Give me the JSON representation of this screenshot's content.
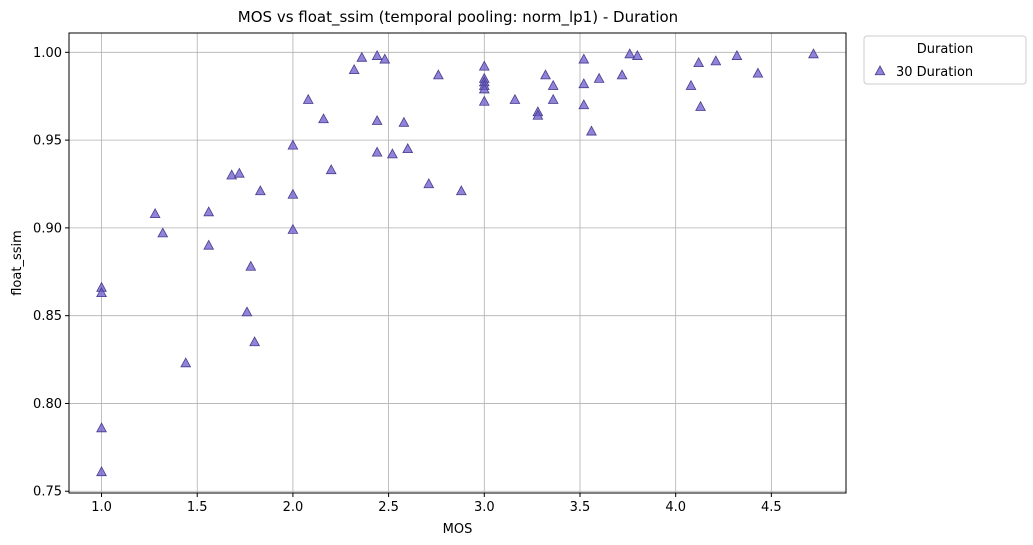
{
  "chart_data": {
    "type": "scatter",
    "title": "MOS vs float_ssim (temporal pooling: norm_lp1) - Duration",
    "xlabel": "MOS",
    "ylabel": "float_ssim",
    "xlim": [
      0.83,
      4.89
    ],
    "ylim": [
      0.749,
      1.011
    ],
    "xticks": [
      "1.0",
      "1.5",
      "2.0",
      "2.5",
      "3.0",
      "3.5",
      "4.0",
      "4.5"
    ],
    "yticks": [
      "0.75",
      "0.80",
      "0.85",
      "0.90",
      "0.95",
      "1.00"
    ],
    "grid": true,
    "legend": {
      "title": "Duration",
      "placement": "outside-top-right"
    },
    "series": [
      {
        "name": "30 Duration",
        "marker": "triangle",
        "color": "#6a5acd",
        "edge_color": "#483d8b",
        "points": [
          [
            1.0,
            0.866
          ],
          [
            1.0,
            0.863
          ],
          [
            1.0,
            0.786
          ],
          [
            1.0,
            0.761
          ],
          [
            1.28,
            0.908
          ],
          [
            1.32,
            0.897
          ],
          [
            1.44,
            0.823
          ],
          [
            1.56,
            0.909
          ],
          [
            1.56,
            0.89
          ],
          [
            1.68,
            0.93
          ],
          [
            1.72,
            0.931
          ],
          [
            1.76,
            0.852
          ],
          [
            1.78,
            0.878
          ],
          [
            1.8,
            0.835
          ],
          [
            1.83,
            0.921
          ],
          [
            2.0,
            0.947
          ],
          [
            2.0,
            0.919
          ],
          [
            2.0,
            0.899
          ],
          [
            2.08,
            0.973
          ],
          [
            2.16,
            0.962
          ],
          [
            2.2,
            0.933
          ],
          [
            2.32,
            0.99
          ],
          [
            2.36,
            0.997
          ],
          [
            2.44,
            0.998
          ],
          [
            2.44,
            0.961
          ],
          [
            2.44,
            0.943
          ],
          [
            2.48,
            0.996
          ],
          [
            2.52,
            0.942
          ],
          [
            2.58,
            0.96
          ],
          [
            2.6,
            0.945
          ],
          [
            2.71,
            0.925
          ],
          [
            2.76,
            0.987
          ],
          [
            2.88,
            0.921
          ],
          [
            3.0,
            0.992
          ],
          [
            3.0,
            0.985
          ],
          [
            3.0,
            0.983
          ],
          [
            3.0,
            0.981
          ],
          [
            3.0,
            0.979
          ],
          [
            3.0,
            0.972
          ],
          [
            3.16,
            0.973
          ],
          [
            3.28,
            0.966
          ],
          [
            3.28,
            0.964
          ],
          [
            3.32,
            0.987
          ],
          [
            3.36,
            0.981
          ],
          [
            3.36,
            0.973
          ],
          [
            3.52,
            0.996
          ],
          [
            3.52,
            0.982
          ],
          [
            3.52,
            0.97
          ],
          [
            3.56,
            0.955
          ],
          [
            3.6,
            0.985
          ],
          [
            3.72,
            0.987
          ],
          [
            3.76,
            0.999
          ],
          [
            3.8,
            0.998
          ],
          [
            4.08,
            0.981
          ],
          [
            4.12,
            0.994
          ],
          [
            4.13,
            0.969
          ],
          [
            4.21,
            0.995
          ],
          [
            4.32,
            0.998
          ],
          [
            4.43,
            0.988
          ],
          [
            4.72,
            0.999
          ]
        ]
      }
    ]
  }
}
